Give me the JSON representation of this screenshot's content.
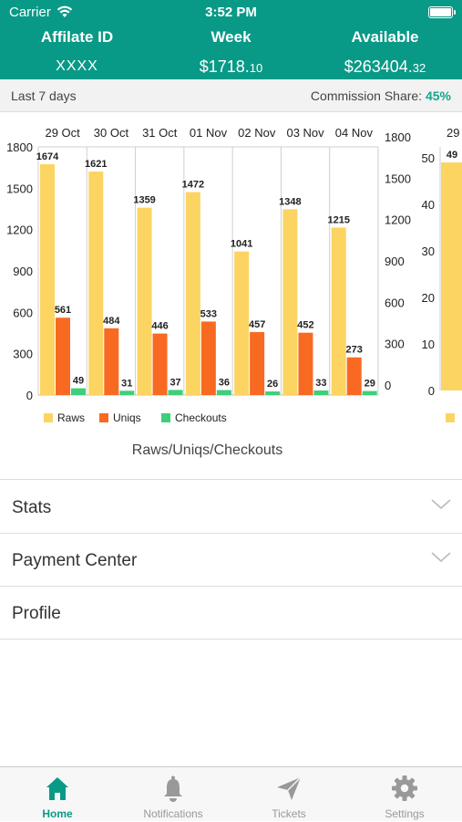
{
  "status_bar": {
    "carrier": "Carrier",
    "time": "3:52 PM"
  },
  "header": {
    "columns": [
      {
        "label": "Affilate ID",
        "value": "XXXX"
      },
      {
        "label": "Week",
        "value_main": "$1718.",
        "value_dec": "10"
      },
      {
        "label": "Available",
        "value_main": "$263404.",
        "value_dec": "32"
      }
    ]
  },
  "period": {
    "range": "Last 7 days",
    "commission_label": "Commission Share:",
    "commission_value": "45%"
  },
  "chart_data": [
    {
      "type": "bar",
      "title": "Raws/Uniqs/Checkouts",
      "categories": [
        "29 Oct",
        "30 Oct",
        "31 Oct",
        "01 Nov",
        "02 Nov",
        "03 Nov",
        "04 Nov"
      ],
      "series": [
        {
          "name": "Raws",
          "color": "#fcd462",
          "values": [
            1674,
            1621,
            1359,
            1472,
            1041,
            1348,
            1215
          ]
        },
        {
          "name": "Uniqs",
          "color": "#f86a22",
          "values": [
            561,
            484,
            446,
            533,
            457,
            452,
            273
          ]
        },
        {
          "name": "Checkouts",
          "color": "#3ecf7a",
          "values": [
            49,
            31,
            37,
            36,
            26,
            33,
            29
          ]
        }
      ],
      "ylim": [
        0,
        1800
      ],
      "yticks": [
        0,
        300,
        600,
        900,
        1200,
        1500,
        1800
      ],
      "right_yticks": [
        0,
        300,
        600,
        900,
        1200,
        1500,
        1800
      ],
      "grid": true,
      "legend": "bottom-left"
    },
    {
      "type": "bar",
      "categories": [
        "29"
      ],
      "series": [
        {
          "color": "#fcd462",
          "values": [
            49
          ]
        }
      ],
      "ylim": [
        0,
        50
      ],
      "yticks": [
        0,
        10,
        20,
        30,
        40,
        50
      ]
    }
  ],
  "sections": [
    {
      "label": "Stats",
      "expandable": true
    },
    {
      "label": "Payment Center",
      "expandable": true
    },
    {
      "label": "Profile",
      "expandable": false
    }
  ],
  "tabs": [
    {
      "label": "Home",
      "icon": "home-icon",
      "active": true
    },
    {
      "label": "Notifications",
      "icon": "bell-icon",
      "active": false
    },
    {
      "label": "Tickets",
      "icon": "paper-plane-icon",
      "active": false
    },
    {
      "label": "Settings",
      "icon": "gear-icon",
      "active": false
    }
  ],
  "colors": {
    "brand": "#099a87",
    "accent_text": "#1aa38f",
    "inactive_tab": "#999999"
  }
}
